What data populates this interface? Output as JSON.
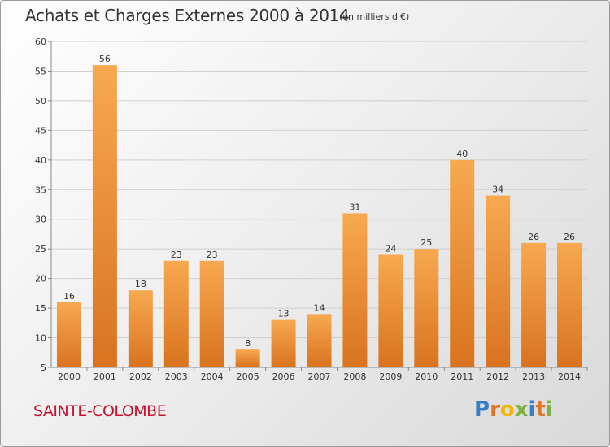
{
  "header": {
    "title": "Achats et Charges Externes 2000 à 2014",
    "subtitle": "(en milliers d'€)"
  },
  "footer": {
    "commune": "SAINTE-COLOMBE",
    "logo_letters": [
      "P",
      "r",
      "o",
      "x",
      "i",
      "t",
      "i"
    ],
    "logo_colors": [
      "#3a7fc4",
      "#e2742a",
      "#f2b705",
      "#7cb342",
      "#3a7fc4",
      "#e2742a",
      "#7cb342"
    ]
  },
  "chart_data": {
    "type": "bar",
    "title": "Achats et Charges Externes 2000 à 2014",
    "subtitle": "(en milliers d'€)",
    "categories": [
      "2000",
      "2001",
      "2002",
      "2003",
      "2004",
      "2005",
      "2006",
      "2007",
      "2008",
      "2009",
      "2010",
      "2011",
      "2012",
      "2013",
      "2014"
    ],
    "values": [
      16,
      56,
      18,
      23,
      23,
      8,
      13,
      14,
      31,
      24,
      25,
      40,
      34,
      26,
      26
    ],
    "ylim": [
      5,
      60
    ],
    "yticks": [
      5,
      10,
      15,
      20,
      25,
      30,
      35,
      40,
      45,
      50,
      55,
      60
    ],
    "grid": true,
    "bar_color_light": "#f7a950",
    "bar_color_dark": "#d9731f",
    "data_labels": true
  }
}
